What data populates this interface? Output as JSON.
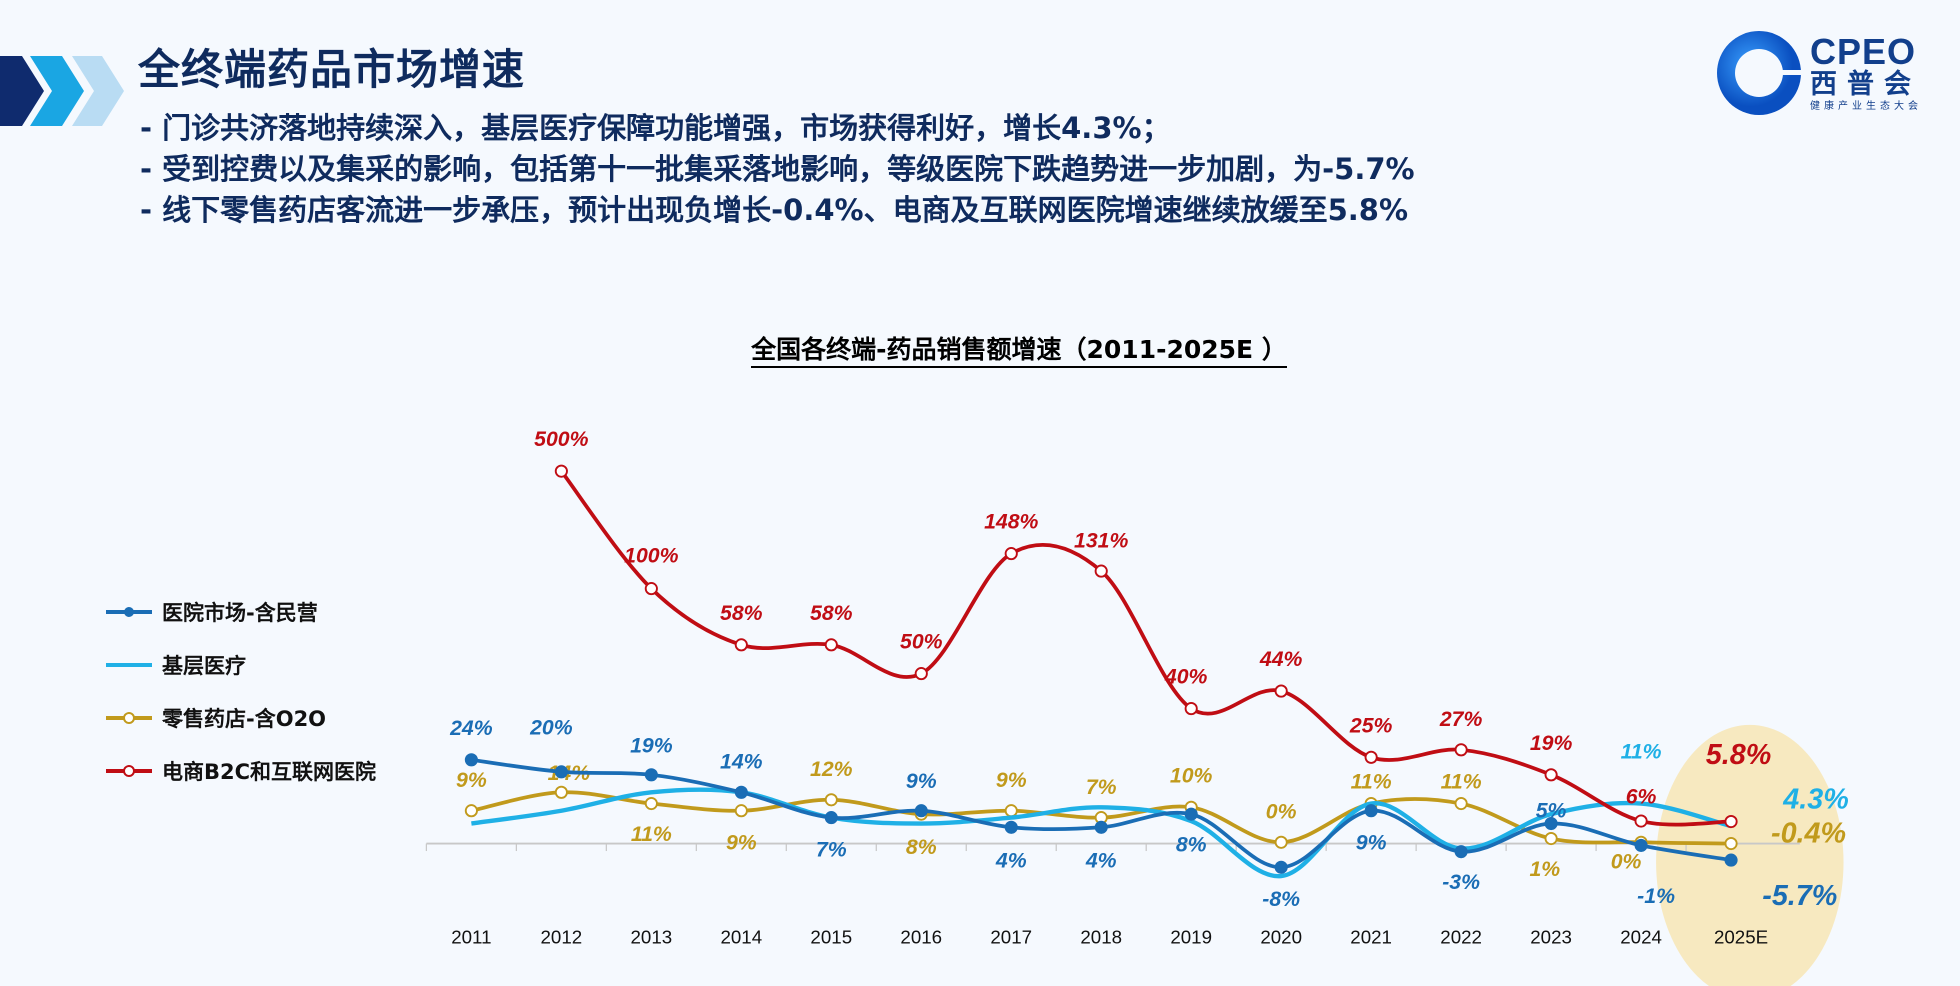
{
  "header": {
    "title": "全终端药品市场增速",
    "bullets": [
      "- 门诊共济落地持续深入，基层医疗保障功能增强，市场获得利好，增长4.3%；",
      "- 受到控费以及集采的影响，包括第十一批集采落地影响，等级医院下跌趋势进一步加剧，为-5.7%",
      "- 线下零售药店客流进一步承压，预计出现负增长-0.4%、电商及互联网医院增速继续放缓至5.8%"
    ]
  },
  "logo": {
    "en": "CPEO",
    "cn": "西普会",
    "sub": "健康产业生态大会",
    "color": "#123f8c"
  },
  "chart_data": {
    "type": "line",
    "title": "全国各终端-药品销售额增速（2011-2025E ）",
    "categories": [
      "2011",
      "2012",
      "2013",
      "2014",
      "2015",
      "2016",
      "2017",
      "2018",
      "2019",
      "2020",
      "2021",
      "2022",
      "2023",
      "2024",
      "2025E"
    ],
    "legend_position": "left",
    "grid": false,
    "highlight": {
      "category": "2025E",
      "color": "#f7e9c0"
    },
    "series": [
      {
        "name": "医院市场-含民营",
        "color": "#1a6db5",
        "marker": "filled",
        "values": [
          24,
          20,
          19,
          14,
          7,
          9,
          4,
          4,
          8,
          -8,
          9,
          -3,
          5,
          -1,
          -5.7
        ],
        "labels": [
          "24%",
          "20%",
          "19%",
          "14%",
          "7%",
          "9%",
          "4%",
          "4%",
          "8%",
          "-8%",
          "9%",
          "-3%",
          "5%",
          "-1%",
          "-5.7%"
        ]
      },
      {
        "name": "基层医疗",
        "color": "#1fb0e6",
        "marker": "none",
        "values": [
          5,
          9,
          14,
          14,
          7,
          5,
          7,
          10,
          6,
          -10,
          11,
          -2,
          8,
          11,
          4.3
        ],
        "labels": [
          null,
          null,
          null,
          null,
          null,
          null,
          null,
          null,
          null,
          null,
          null,
          null,
          null,
          "11%",
          "4.3%"
        ]
      },
      {
        "name": "零售药店-含O2O",
        "color": "#c19a1c",
        "marker": "hollow",
        "values": [
          9,
          14,
          11,
          9,
          12,
          8,
          9,
          7,
          10,
          0,
          11,
          11,
          1,
          0,
          -0.4
        ],
        "labels": [
          "9%",
          "14%",
          "11%",
          "9%",
          "12%",
          "8%",
          "9%",
          "7%",
          "10%",
          "0%",
          "11%",
          "11%",
          "1%",
          "0%",
          "-0.4%"
        ]
      },
      {
        "name": "电商B2C和互联网医院",
        "color": "#c00d14",
        "marker": "hollow",
        "values": [
          null,
          500,
          100,
          58,
          58,
          50,
          148,
          131,
          40,
          44,
          25,
          27,
          19,
          6,
          5.8
        ],
        "labels": [
          null,
          "500%",
          "100%",
          "58%",
          "58%",
          "50%",
          "148%",
          "131%",
          "40%",
          "44%",
          "25%",
          "27%",
          "19%",
          "6%",
          "5.8%"
        ]
      }
    ]
  }
}
